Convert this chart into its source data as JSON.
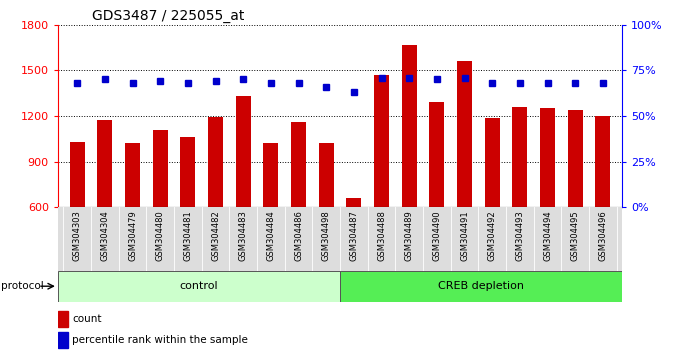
{
  "title": "GDS3487 / 225055_at",
  "samples": [
    "GSM304303",
    "GSM304304",
    "GSM304479",
    "GSM304480",
    "GSM304481",
    "GSM304482",
    "GSM304483",
    "GSM304484",
    "GSM304486",
    "GSM304498",
    "GSM304487",
    "GSM304488",
    "GSM304489",
    "GSM304490",
    "GSM304491",
    "GSM304492",
    "GSM304493",
    "GSM304494",
    "GSM304495",
    "GSM304496"
  ],
  "counts": [
    1030,
    1175,
    1020,
    1110,
    1060,
    1195,
    1330,
    1020,
    1160,
    1020,
    660,
    1470,
    1670,
    1290,
    1560,
    1185,
    1260,
    1255,
    1240,
    1200
  ],
  "percentiles": [
    68,
    70,
    68,
    69,
    68,
    69,
    70,
    68,
    68,
    66,
    63,
    71,
    71,
    70,
    71,
    68,
    68,
    68,
    68,
    68
  ],
  "control_count": 10,
  "ylim_left": [
    600,
    1800
  ],
  "ylim_right": [
    0,
    100
  ],
  "yticks_left": [
    600,
    900,
    1200,
    1500,
    1800
  ],
  "yticks_right": [
    0,
    25,
    50,
    75,
    100
  ],
  "bar_color": "#cc0000",
  "dot_color": "#0000cc",
  "control_color": "#ccffcc",
  "creb_color": "#55ee55",
  "control_label": "control",
  "creb_label": "CREB depletion",
  "protocol_label": "protocol",
  "legend_count": "count",
  "legend_pct": "percentile rank within the sample",
  "bg_color": "#dddddd",
  "plot_bg": "#ffffff"
}
